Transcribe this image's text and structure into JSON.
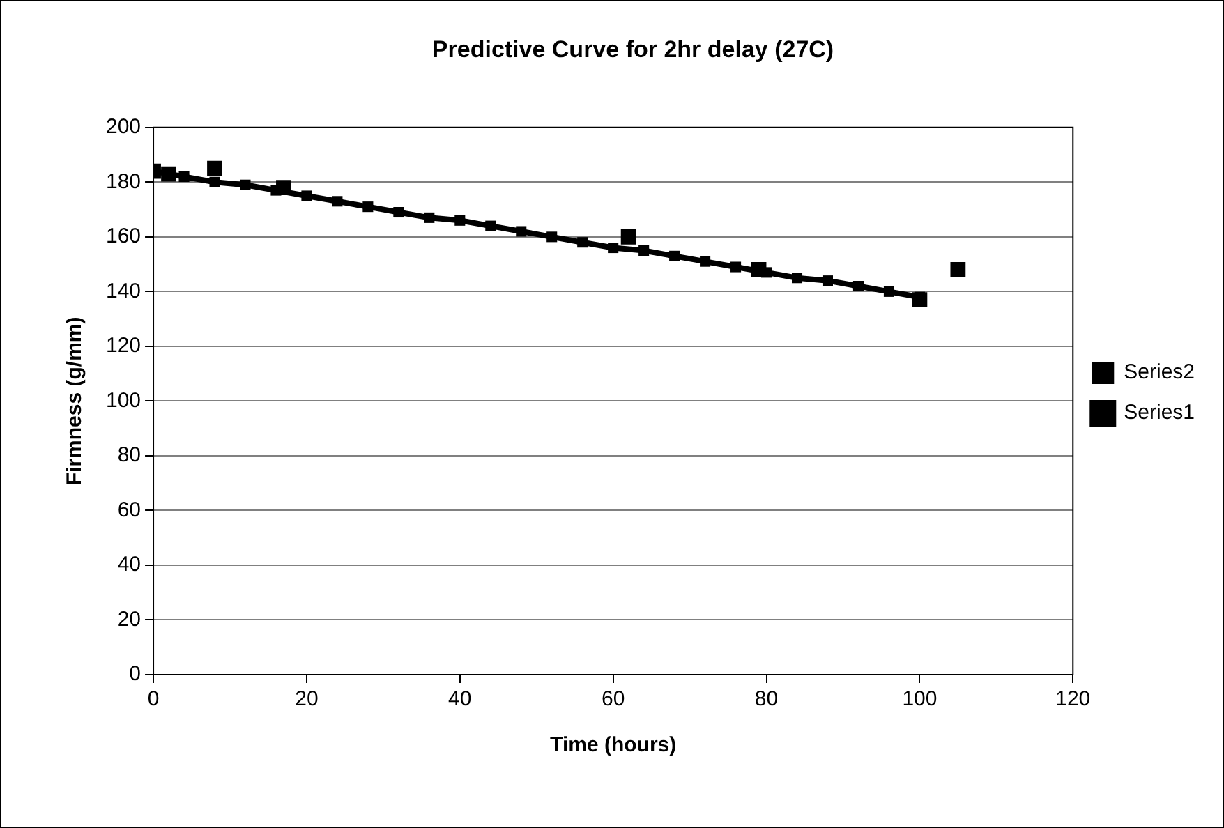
{
  "chart_data": {
    "type": "line",
    "title": "Predictive Curve for 2hr delay (27C)",
    "xlabel": "Time (hours)",
    "ylabel": "Firmness (g/mm)",
    "xlim": [
      0,
      120
    ],
    "xticks": [
      0,
      20,
      40,
      60,
      80,
      100,
      120
    ],
    "ylim": [
      0,
      200
    ],
    "yticks": [
      0,
      20,
      40,
      60,
      80,
      100,
      120,
      140,
      160,
      180,
      200
    ],
    "grid": "y",
    "legend": "right",
    "marker": "square",
    "series": [
      {
        "name": "Series1",
        "color": "#000000",
        "x": [
          0,
          4,
          8,
          12,
          16,
          20,
          24,
          28,
          32,
          36,
          40,
          44,
          48,
          52,
          56,
          60,
          64,
          68,
          72,
          76,
          80,
          84,
          88,
          92,
          96,
          100
        ],
        "values": [
          184,
          182,
          180,
          179,
          177,
          175,
          173,
          171,
          169,
          167,
          166,
          164,
          162,
          160,
          158,
          156,
          155,
          153,
          151,
          149,
          147,
          145,
          144,
          142,
          140,
          138
        ]
      },
      {
        "name": "Series2",
        "type": "scatter",
        "color": "#000000",
        "x": [
          0,
          2,
          8,
          17,
          62,
          79,
          100,
          105
        ],
        "values": [
          184,
          183,
          185,
          178,
          160,
          148,
          137,
          148
        ]
      }
    ]
  }
}
